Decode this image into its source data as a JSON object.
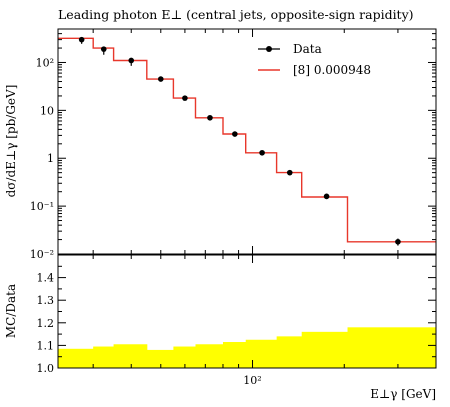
{
  "colors": {
    "data": "#000000",
    "mc_line": "#e8372b",
    "ratio_band": "#ffff00",
    "axes": "#000000",
    "background": "#ffffff"
  },
  "chart_data": [
    {
      "type": "line",
      "title": "Leading photon E⊥ (central jets, opposite-sign rapidity)",
      "ylabel": "dσ/dE⊥γ [pb/GeV]",
      "x_scale": "log",
      "y_scale": "log",
      "xlim": [
        23,
        400
      ],
      "ylim": [
        0.01,
        500
      ],
      "y_ticks": [
        {
          "value": 0.01,
          "label": "10⁻²"
        },
        {
          "value": 0.1,
          "label": "10⁻¹"
        },
        {
          "value": 1,
          "label": "1"
        },
        {
          "value": 10,
          "label": "10"
        },
        {
          "value": 100,
          "label": "10²"
        }
      ],
      "grid": false,
      "legend_position": "top-right",
      "series": [
        {
          "name": "Data",
          "style": "points",
          "x": [
            27.5,
            32.5,
            40,
            50,
            60,
            72.5,
            87.5,
            107.5,
            132.5,
            175,
            300
          ],
          "y": [
            300,
            190,
            110,
            45,
            18,
            7,
            3.2,
            1.3,
            0.5,
            0.16,
            0.018
          ],
          "y_err_up": [
            40,
            25,
            12,
            5,
            2,
            0.8,
            0.35,
            0.15,
            0.05,
            0.02,
            0.003
          ],
          "y_err_down": [
            55,
            45,
            25,
            5,
            2,
            0.8,
            0.35,
            0.15,
            0.05,
            0.02,
            0.003
          ]
        },
        {
          "name": "[8] 0.000948",
          "style": "step",
          "bin_edges": [
            23,
            30,
            35,
            45,
            55,
            65,
            80,
            95,
            120,
            145,
            205,
            400
          ],
          "y": [
            320,
            200,
            110,
            45,
            18,
            7,
            3.2,
            1.3,
            0.5,
            0.155,
            0.018
          ]
        }
      ]
    },
    {
      "type": "area",
      "ylabel": "MC/Data",
      "xlabel": "E⊥γ [GeV]",
      "x_scale": "log",
      "xlim": [
        23,
        400
      ],
      "ylim": [
        1.0,
        1.5
      ],
      "y_ticks": [
        {
          "value": 1.0,
          "label": "1.0"
        },
        {
          "value": 1.1,
          "label": "1.1"
        },
        {
          "value": 1.2,
          "label": "1.2"
        },
        {
          "value": 1.3,
          "label": "1.3"
        },
        {
          "value": 1.4,
          "label": "1.4"
        }
      ],
      "x_ticks": [
        {
          "value": 100,
          "label": "10²"
        }
      ],
      "bin_edges": [
        23,
        30,
        35,
        45,
        55,
        65,
        80,
        95,
        120,
        145,
        205,
        400
      ],
      "band_upper": [
        1.085,
        1.095,
        1.105,
        1.08,
        1.095,
        1.105,
        1.115,
        1.125,
        1.14,
        1.16,
        1.18
      ],
      "band_lower": [
        1.0,
        1.0,
        1.0,
        1.0,
        1.0,
        1.0,
        1.0,
        1.0,
        1.0,
        1.0,
        1.0
      ]
    }
  ]
}
